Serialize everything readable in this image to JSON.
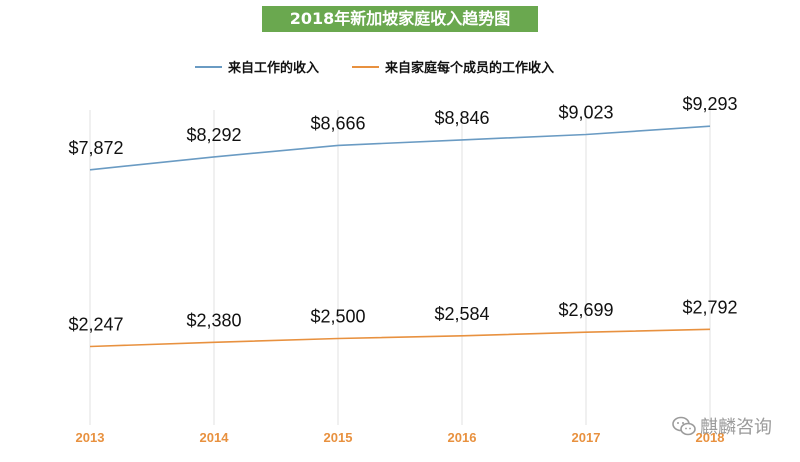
{
  "title": "2018年新加坡家庭收入趋势图",
  "watermark": "麒麟咨询",
  "colors": {
    "title_bg": "#6aa84f",
    "series_work": "#6a9bc3",
    "series_member": "#e8913f",
    "tick_label": "#e8913f",
    "gridline": "#e2e2e2"
  },
  "chart_data": {
    "type": "line",
    "title": "2018年新加坡家庭收入趋势图",
    "xlabel": "",
    "ylabel": "",
    "categories": [
      "2013",
      "2014",
      "2015",
      "2016",
      "2017",
      "2018"
    ],
    "series": [
      {
        "name": "来自工作的收入",
        "values": [
          7872,
          8292,
          8666,
          8846,
          9023,
          9293
        ],
        "labels": [
          "$7,872",
          "$8,292",
          "$8,666",
          "$8,846",
          "$9,023",
          "$9,293"
        ]
      },
      {
        "name": "来自家庭每个成员的工作收入",
        "values": [
          2247,
          2380,
          2500,
          2584,
          2699,
          2792
        ],
        "labels": [
          "$2,247",
          "$2,380",
          "$2,500",
          "$2,584",
          "$2,699",
          "$2,792"
        ]
      }
    ],
    "ylim": [
      0,
      10000
    ],
    "grid": "vertical",
    "legend": "top-center"
  }
}
